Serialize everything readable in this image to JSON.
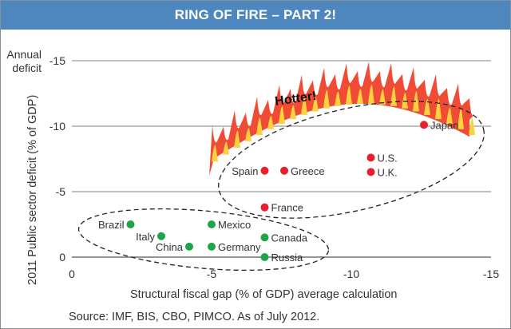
{
  "chart_data": {
    "type": "scatter",
    "title": "RING OF FIRE – PART 2!",
    "xlabel": "Structural fiscal gap (% of GDP) average calculation",
    "ylabel": "2011 Public sector deficit (% of GDP)",
    "ylabel_top": [
      "Annual",
      "deficit"
    ],
    "xlim": [
      0,
      -15
    ],
    "ylim": [
      0,
      -15
    ],
    "xticks": [
      "0",
      "-5",
      "-10",
      "-15"
    ],
    "yticks": [
      "-15",
      "-10",
      "-5",
      "0"
    ],
    "grid": "horizontal",
    "annotation": "Hotter!",
    "source": "Source: IMF, BIS, CBO, PIMCO. As of July 2012.",
    "colors": {
      "hot": "#e8202e",
      "cool": "#1ea54a",
      "title_bg": "#4d87bd",
      "flame_outer": "#ef4b35",
      "flame_inner": "#fbd13f"
    },
    "series": [
      {
        "group": "hot",
        "points": [
          {
            "label": "Japan",
            "x": -12.6,
            "y": -10.1
          },
          {
            "label": "U.S.",
            "x": -10.7,
            "y": -7.6
          },
          {
            "label": "U.K.",
            "x": -10.7,
            "y": -6.5
          },
          {
            "label": "Spain",
            "x": -6.9,
            "y": -6.6
          },
          {
            "label": "Greece",
            "x": -7.6,
            "y": -6.6
          },
          {
            "label": "France",
            "x": -6.9,
            "y": -3.8
          }
        ]
      },
      {
        "group": "cool",
        "points": [
          {
            "label": "Brazil",
            "x": -2.1,
            "y": -2.5
          },
          {
            "label": "Italy",
            "x": -3.2,
            "y": -1.6
          },
          {
            "label": "China",
            "x": -4.2,
            "y": -0.8
          },
          {
            "label": "Mexico",
            "x": -5.0,
            "y": -2.5
          },
          {
            "label": "Germany",
            "x": -5.0,
            "y": -0.8
          },
          {
            "label": "Canada",
            "x": -6.9,
            "y": -1.5
          },
          {
            "label": "Russia",
            "x": -6.9,
            "y": 0
          }
        ]
      }
    ]
  }
}
